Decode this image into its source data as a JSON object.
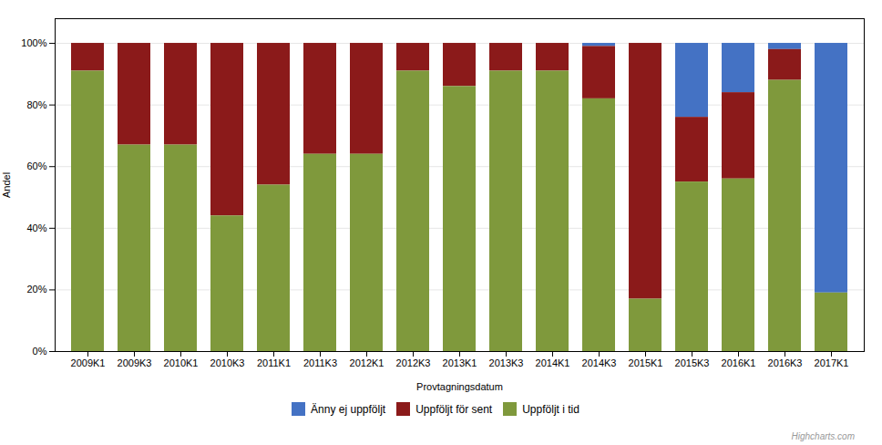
{
  "chart_data": {
    "type": "bar",
    "stacked": true,
    "categories": [
      "2009K1",
      "2009K3",
      "2010K1",
      "2010K3",
      "2011K1",
      "2011K3",
      "2012K1",
      "2012K3",
      "2013K1",
      "2013K3",
      "2014K1",
      "2014K3",
      "2015K1",
      "2015K3",
      "2016K1",
      "2016K3",
      "2017K1"
    ],
    "series": [
      {
        "name": "Änny ej uppföljt",
        "color": "#4472c4",
        "values": [
          0,
          0,
          0,
          0,
          0,
          0,
          0,
          0,
          0,
          0,
          0,
          1,
          0,
          24,
          16,
          2,
          81
        ]
      },
      {
        "name": "Uppföljt för sent",
        "color": "#8b1a1a",
        "values": [
          9,
          33,
          33,
          56,
          46,
          36,
          36,
          9,
          14,
          9,
          9,
          17,
          83,
          21,
          28,
          10,
          0
        ]
      },
      {
        "name": "Uppföljt i tid",
        "color": "#7f993c",
        "values": [
          91,
          67,
          67,
          44,
          54,
          64,
          64,
          91,
          86,
          91,
          91,
          82,
          17,
          55,
          56,
          88,
          19
        ]
      }
    ],
    "xlabel": "Provtagningsdatum",
    "ylabel": "Andel",
    "ylim": [
      0,
      108
    ],
    "yticks": [
      {
        "value": 0,
        "label": "0%"
      },
      {
        "value": 20,
        "label": "20%"
      },
      {
        "value": 40,
        "label": "40%"
      },
      {
        "value": 60,
        "label": "60%"
      },
      {
        "value": 80,
        "label": "80%"
      },
      {
        "value": 100,
        "label": "100%"
      }
    ],
    "grid": true,
    "legend": "bottom",
    "annotations": [
      "Highcharts.com"
    ]
  }
}
